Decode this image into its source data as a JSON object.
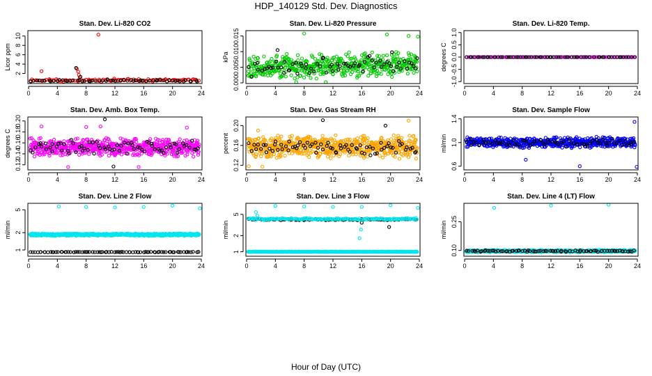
{
  "figure": {
    "title": "HDP_140129  Std. Dev. Diagnostics",
    "xlabel": "Hour of Day (UTC)"
  },
  "chart_data": [
    {
      "type": "scatter",
      "title": "Stan. Dev. Li-820 CO2",
      "ylabel": "Licor ppm",
      "xlim": [
        0,
        24
      ],
      "ylim": [
        0,
        11
      ],
      "xticks": [
        0,
        4,
        8,
        12,
        16,
        20,
        24
      ],
      "yticks": [
        2,
        4,
        6,
        8,
        10
      ],
      "ytick_labels": [
        "2",
        "4",
        "6",
        "8",
        "10"
      ],
      "series": [
        {
          "name": "primary",
          "color": "#ff0000",
          "gen": {
            "base": 0.55,
            "spread": 0.35,
            "n": 95,
            "seed": 11
          },
          "points": [
            [
              1.8,
              2.5
            ],
            [
              6.7,
              3.0
            ],
            [
              6.9,
              2.4
            ],
            [
              7.0,
              1.7
            ],
            [
              7.1,
              1.1
            ],
            [
              9.7,
              10.3
            ],
            [
              11.9,
              0.9
            ],
            [
              15.3,
              0.8
            ]
          ]
        },
        {
          "name": "reference",
          "color": "#000000",
          "gen": {
            "base": 0.45,
            "spread": 0.25,
            "n": 60,
            "seed": 12
          },
          "points": [
            [
              6.6,
              3.2
            ],
            [
              7.2,
              1.3
            ]
          ]
        }
      ]
    },
    {
      "type": "scatter",
      "title": "Stan. Dev. Li-820 Pressure",
      "ylabel": "kPa",
      "xlim": [
        0,
        24
      ],
      "ylim": [
        0,
        0.0165
      ],
      "xticks": [
        0,
        4,
        8,
        12,
        16,
        20,
        24
      ],
      "yticks": [
        0,
        0.005,
        0.01,
        0.015
      ],
      "ytick_labels": [
        "0.000",
        "0.005",
        "0.010",
        "0.015"
      ],
      "series": [
        {
          "name": "primary",
          "color": "#00cc00",
          "gen": {
            "base": 0.0055,
            "spread": 0.0042,
            "n": 520,
            "seed": 21,
            "trend": 5e-05
          },
          "points": [
            [
              8.0,
              0.0158
            ],
            [
              19.5,
              0.0155
            ],
            [
              22.5,
              0.015
            ],
            [
              23.8,
              0.0148
            ],
            [
              6.9,
              0.0002
            ],
            [
              11.0,
              0.0001
            ]
          ]
        },
        {
          "name": "reference",
          "color": "#000000",
          "gen": {
            "base": 0.0055,
            "spread": 0.003,
            "n": 70,
            "seed": 22,
            "trend": 8e-05
          },
          "points": [
            [
              4.3,
              0.0105
            ],
            [
              20.2,
              0.0098
            ],
            [
              23.7,
              0.0079
            ]
          ]
        }
      ]
    },
    {
      "type": "scatter",
      "title": "Stan. Dev. Li-820 Temp.",
      "ylabel": "degrees C",
      "xlim": [
        0,
        24
      ],
      "ylim": [
        -1.05,
        1.05
      ],
      "xticks": [
        0,
        4,
        8,
        12,
        16,
        20,
        24
      ],
      "yticks": [
        -1,
        -0.5,
        0,
        0.5,
        1
      ],
      "ytick_labels": [
        "-1.0",
        "-0.5",
        "0.0",
        "0.5",
        "1.0"
      ],
      "series": [
        {
          "name": "primary",
          "color": "#ff00ff",
          "gen": {
            "base": 0,
            "spread": 0,
            "n": 120,
            "seed": 31
          },
          "points": []
        },
        {
          "name": "reference",
          "color": "#000000",
          "gen": {
            "base": 0,
            "spread": 0,
            "n": 70,
            "seed": 32
          },
          "points": []
        }
      ]
    },
    {
      "type": "scatter",
      "title": "Stan. Dev. Amb. Box Temp.",
      "ylabel": "degrees C",
      "xlim": [
        0,
        24
      ],
      "ylim": [
        0.112,
        0.206
      ],
      "xticks": [
        0,
        4,
        8,
        12,
        16,
        20,
        24
      ],
      "yticks": [
        0.12,
        0.14,
        0.16,
        0.18,
        0.2
      ],
      "ytick_labels": [
        "0.12",
        "0.14",
        "0.16",
        "0.18",
        "0.20"
      ],
      "series": [
        {
          "name": "primary",
          "color": "#ff00ff",
          "gen": {
            "base": 0.152,
            "spread": 0.018,
            "n": 620,
            "seed": 41
          },
          "points": [
            [
              1.8,
              0.19
            ],
            [
              8.0,
              0.189
            ],
            [
              10.0,
              0.19
            ],
            [
              22.0,
              0.188
            ],
            [
              5.5,
              0.116
            ],
            [
              15.3,
              0.116
            ]
          ]
        },
        {
          "name": "reference",
          "color": "#000000",
          "gen": {
            "base": 0.152,
            "spread": 0.016,
            "n": 75,
            "seed": 42
          },
          "points": [
            [
              10.6,
              0.203
            ],
            [
              11.8,
              0.117
            ]
          ]
        }
      ]
    },
    {
      "type": "scatter",
      "title": "Stan. Dev. Gas Stream RH",
      "ylabel": "percent",
      "xlim": [
        0,
        24
      ],
      "ylim": [
        0.112,
        0.216
      ],
      "xticks": [
        0,
        4,
        8,
        12,
        16,
        20,
        24
      ],
      "yticks": [
        0.12,
        0.16,
        0.2
      ],
      "ytick_labels": [
        "0.12",
        "0.16",
        "0.20"
      ],
      "series": [
        {
          "name": "primary",
          "color": "#ffa500",
          "gen": {
            "base": 0.157,
            "spread": 0.025,
            "n": 650,
            "seed": 51
          },
          "points": [
            [
              1.6,
              0.19
            ],
            [
              22.5,
              0.21
            ],
            [
              0.3,
              0.118
            ],
            [
              2.2,
              0.117
            ]
          ]
        },
        {
          "name": "reference",
          "color": "#000000",
          "gen": {
            "base": 0.157,
            "spread": 0.018,
            "n": 75,
            "seed": 52
          },
          "points": [
            [
              10.6,
              0.211
            ],
            [
              19.3,
              0.2
            ]
          ]
        }
      ]
    },
    {
      "type": "scatter",
      "title": "Stan. Dev. Sample Flow",
      "ylabel": "ml/min",
      "xlim": [
        0,
        24
      ],
      "ylim": [
        0.55,
        1.42
      ],
      "xticks": [
        0,
        4,
        8,
        12,
        16,
        20,
        24
      ],
      "yticks": [
        0.6,
        1.0,
        1.4
      ],
      "ytick_labels": [
        "0.6",
        "1.0",
        "1.4"
      ],
      "series": [
        {
          "name": "primary",
          "color": "#0000ff",
          "gen": {
            "base": 1.0,
            "spread": 0.1,
            "n": 560,
            "seed": 61
          },
          "points": [
            [
              23.6,
              1.35
            ],
            [
              8.5,
              0.71
            ],
            [
              16.0,
              0.6
            ],
            [
              23.9,
              0.59
            ]
          ]
        },
        {
          "name": "reference",
          "color": "#000000",
          "gen": {
            "base": 1.0,
            "spread": 0.08,
            "n": 70,
            "seed": 62
          },
          "points": []
        }
      ]
    },
    {
      "type": "scatter",
      "title": "Stan. Dev. Line 2 Flow",
      "ylabel": "ml/min",
      "xlim": [
        0,
        24
      ],
      "ylim": [
        0.8,
        6.3
      ],
      "ylog": true,
      "xticks": [
        0,
        4,
        8,
        12,
        16,
        20,
        24
      ],
      "yticks": [
        1,
        2,
        5
      ],
      "ytick_labels": [
        "1",
        "2",
        "5"
      ],
      "series": [
        {
          "name": "primary",
          "color": "#00e5ee",
          "gen": {
            "base": 1.85,
            "spread": 0.1,
            "n": 620,
            "seed": 71
          },
          "points": [
            [
              4.2,
              5.7
            ],
            [
              8.0,
              5.6
            ],
            [
              12.0,
              5.5
            ],
            [
              16.0,
              5.6
            ],
            [
              20.0,
              5.9
            ],
            [
              23.8,
              5.3
            ]
          ]
        },
        {
          "name": "reference",
          "color": "#000000",
          "gen": {
            "base": 0.92,
            "spread": 0.01,
            "n": 80,
            "seed": 72
          },
          "points": []
        }
      ]
    },
    {
      "type": "scatter",
      "title": "Stan. Dev. Line 3 Flow",
      "ylabel": "ml/min",
      "xlim": [
        0,
        24
      ],
      "ylim": [
        0.85,
        7.8
      ],
      "ylog": true,
      "xticks": [
        0,
        4,
        8,
        12,
        16,
        20,
        24
      ],
      "yticks": [
        1,
        2,
        5
      ],
      "ytick_labels": [
        "1",
        "2",
        "5"
      ],
      "series": [
        {
          "name": "primary",
          "color": "#00e5ee",
          "gen": {
            "base": 1.0,
            "spread": 0.01,
            "n": 620,
            "seed": 81
          },
          "points": [
            [
              1.3,
              5.5
            ],
            [
              1.5,
              4.7
            ],
            [
              4.0,
              7.2
            ],
            [
              8.0,
              7.0
            ],
            [
              12.0,
              6.9
            ],
            [
              16.0,
              6.9
            ],
            [
              20.0,
              7.4
            ],
            [
              23.8,
              6.6
            ],
            [
              15.7,
              1.8
            ],
            [
              15.9,
              2.6
            ],
            [
              1.0,
              4.2
            ],
            [
              23.5,
              4.3
            ]
          ]
        },
        {
          "name": "reference",
          "color": "#000000",
          "gen": {
            "base": 4.0,
            "spread": 0.15,
            "n": 70,
            "seed": 82
          },
          "points": [
            [
              19.8,
              2.9
            ],
            [
              16.0,
              3.5
            ]
          ]
        },
        {
          "name": "secondary",
          "color": "#00e5ee",
          "gen": {
            "base": 4.1,
            "spread": 0.18,
            "n": 160,
            "seed": 83
          },
          "points": []
        }
      ]
    },
    {
      "type": "scatter",
      "title": "Stan. Dev. Line 4 (LT) Flow",
      "ylabel": "ml/min",
      "xlim": [
        0,
        24
      ],
      "ylim": [
        0.085,
        0.44
      ],
      "ylog": true,
      "xticks": [
        0,
        4,
        8,
        12,
        16,
        20,
        24
      ],
      "yticks": [
        0.1,
        0.25
      ],
      "ytick_labels": [
        "0.10",
        "0.25"
      ],
      "series": [
        {
          "name": "primary",
          "color": "#00e5ee",
          "gen": {
            "base": 0.098,
            "spread": 0.004,
            "n": 600,
            "seed": 91
          },
          "points": [
            [
              4.1,
              0.39
            ],
            [
              12.0,
              0.42
            ],
            [
              20.0,
              0.44
            ]
          ]
        },
        {
          "name": "reference",
          "color": "#000000",
          "gen": {
            "base": 0.098,
            "spread": 0.003,
            "n": 80,
            "seed": 92
          },
          "points": []
        }
      ]
    }
  ]
}
